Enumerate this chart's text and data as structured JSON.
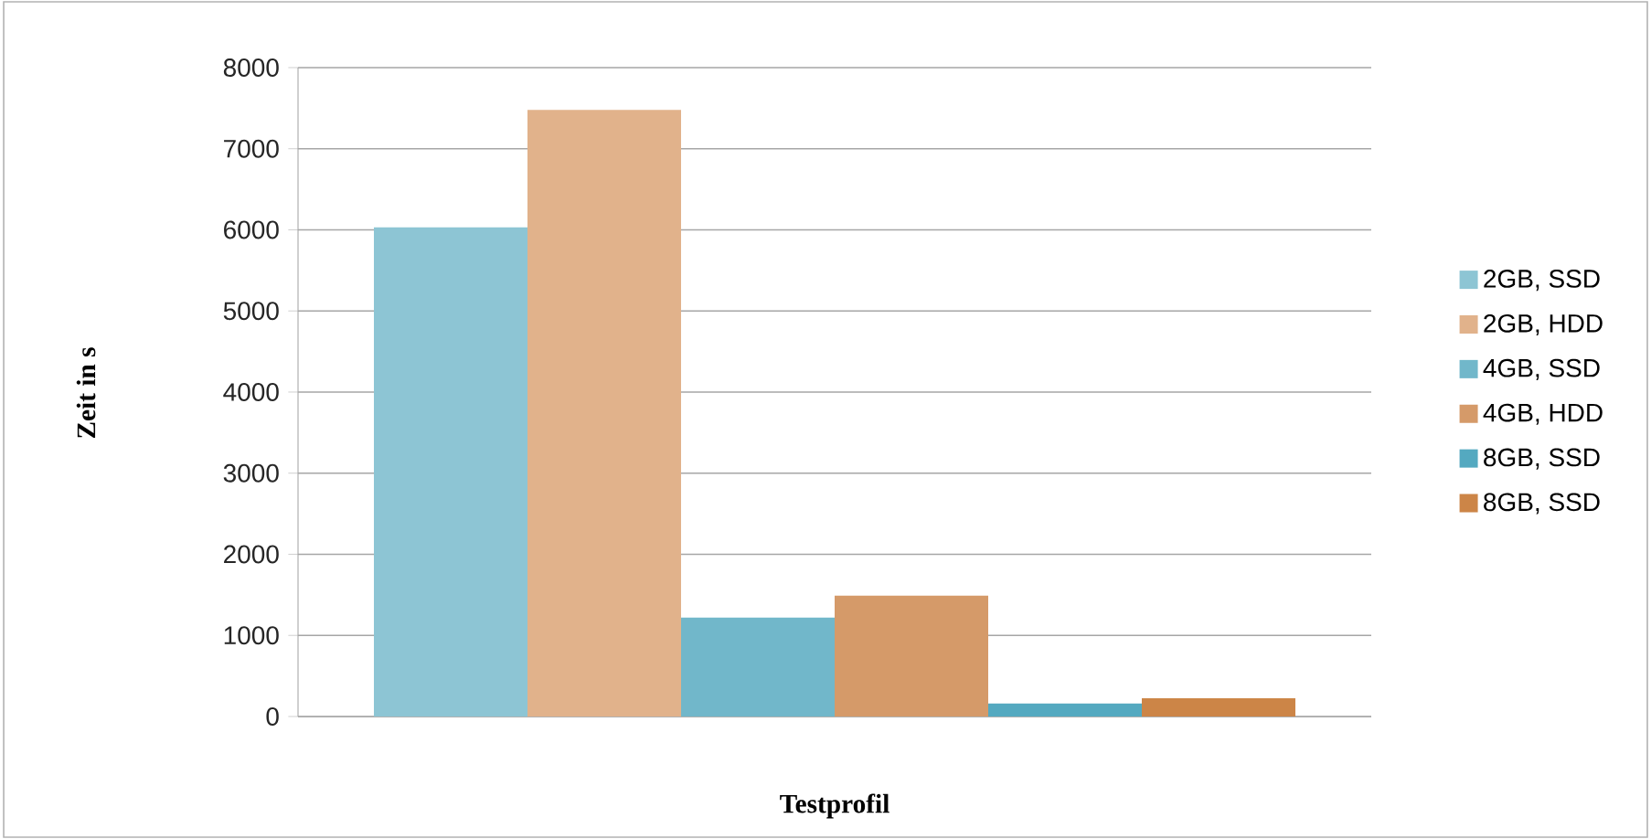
{
  "chart_data": {
    "type": "bar",
    "xlabel": "Testprofil",
    "ylabel": "Zeit in s",
    "categories": [
      null
    ],
    "series": [
      {
        "name": "2GB, SSD",
        "color": "#8dc5d4",
        "values": [
          6030
        ]
      },
      {
        "name": "2GB, HDD",
        "color": "#e1b28b",
        "values": [
          7480
        ]
      },
      {
        "name": "4GB, SSD",
        "color": "#71b7ca",
        "values": [
          1220
        ]
      },
      {
        "name": "4GB, HDD",
        "color": "#d59a69",
        "values": [
          1490
        ]
      },
      {
        "name": "8GB, SSD",
        "color": "#54a9c0",
        "values": [
          160
        ]
      },
      {
        "name": "8GB, SSD",
        "color": "#cc8547",
        "values": [
          225
        ]
      }
    ],
    "ylim": [
      0,
      8000
    ],
    "yticks": [
      0,
      1000,
      2000,
      3000,
      4000,
      5000,
      6000,
      7000,
      8000
    ],
    "grid": "y",
    "legend": "right"
  }
}
